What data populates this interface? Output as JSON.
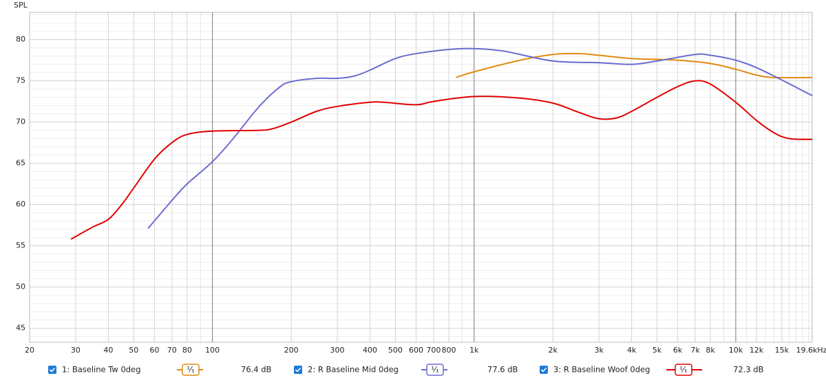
{
  "chart_data": {
    "type": "line",
    "y_label": "SPL",
    "xscale": "log",
    "xlim": [
      20,
      19600
    ],
    "ylim": [
      43.3,
      83.3
    ],
    "xticks": [
      20,
      30,
      40,
      50,
      60,
      70,
      80,
      100,
      200,
      300,
      400,
      500,
      600,
      700,
      800,
      {
        "value": 1000,
        "label": "1k"
      },
      {
        "value": 2000,
        "label": "2k"
      },
      {
        "value": 3000,
        "label": "3k"
      },
      {
        "value": 4000,
        "label": "4k"
      },
      {
        "value": 5000,
        "label": "5k"
      },
      {
        "value": 6000,
        "label": "6k"
      },
      {
        "value": 7000,
        "label": "7k"
      },
      {
        "value": 8000,
        "label": "8k"
      },
      {
        "value": 10000,
        "label": "10k"
      },
      {
        "value": 12000,
        "label": "12k"
      },
      {
        "value": 15000,
        "label": "15k"
      },
      {
        "value": 19600,
        "label": "19.6kHz"
      }
    ],
    "xminor": [
      90,
      900,
      9000,
      11000,
      13000,
      14000,
      16000,
      17000,
      18000,
      19000
    ],
    "yticks": [
      45,
      50,
      55,
      60,
      65,
      70,
      75,
      80
    ],
    "yminor_step": 1,
    "grid": true,
    "series": [
      {
        "name": "1: Baseline Tw 0deg",
        "color": "#e08a10",
        "smoothing": "¹⁄₁",
        "readout": "76.4 dB",
        "x": [
          852,
          1000,
          1500,
          2000,
          2500,
          3000,
          4000,
          6000,
          8000,
          10000,
          12000,
          14000,
          19600
        ],
        "values": [
          75.4,
          76.1,
          77.5,
          78.2,
          78.3,
          78.1,
          77.7,
          77.5,
          77.1,
          76.4,
          75.7,
          75.4,
          75.4
        ]
      },
      {
        "name": "2: R Baseline Mid 0deg",
        "color": "#6b6bd0",
        "smoothing": "¹⁄₁",
        "readout": "77.6 dB",
        "x": [
          56.7,
          70,
          80,
          100,
          120,
          150,
          180,
          200,
          250,
          300,
          350,
          400,
          500,
          600,
          800,
          1000,
          1300,
          2000,
          3000,
          4000,
          5000,
          7000,
          8000,
          10000,
          12000,
          15000,
          19600
        ],
        "values": [
          57.1,
          60.5,
          62.5,
          65.2,
          68,
          71.8,
          74.2,
          74.9,
          75.3,
          75.3,
          75.6,
          76.3,
          77.7,
          78.3,
          78.8,
          78.9,
          78.6,
          77.4,
          77.2,
          77.0,
          77.4,
          78.2,
          78.1,
          77.5,
          76.6,
          75.1,
          73.2
        ]
      },
      {
        "name": "3: R Baseline Woof 0deg",
        "color": "#e00000",
        "smoothing": "¹⁄₁",
        "readout": "72.3 dB",
        "x": [
          28.8,
          35,
          40,
          45,
          50,
          60,
          70,
          80,
          100,
          150,
          170,
          200,
          250,
          300,
          400,
          450,
          600,
          700,
          1000,
          1500,
          2000,
          2500,
          3000,
          3500,
          4000,
          5000,
          6000,
          7000,
          8000,
          10000,
          12000,
          14000,
          16000,
          19600
        ],
        "values": [
          55.8,
          57.3,
          58.2,
          60,
          62,
          65.5,
          67.5,
          68.5,
          68.9,
          69,
          69.2,
          70,
          71.3,
          71.9,
          72.4,
          72.4,
          72.1,
          72.5,
          73.1,
          72.9,
          72.3,
          71.2,
          70.4,
          70.5,
          71.3,
          73,
          74.3,
          75,
          74.6,
          72.4,
          70.2,
          68.7,
          68,
          67.9
        ]
      }
    ]
  }
}
